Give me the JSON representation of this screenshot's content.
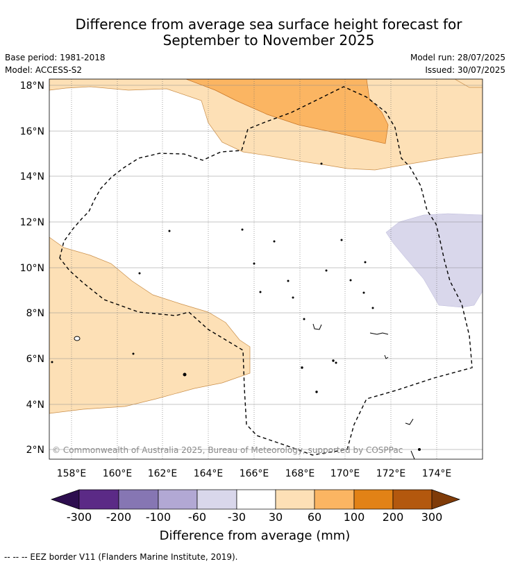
{
  "header": {
    "title_line1": "Difference from average sea surface height forecast for",
    "title_line2": "September to November 2025",
    "base_period": "Base period: 1981-2018",
    "model": "Model: ACCESS-S2",
    "model_run": "Model run: 28/07/2025",
    "issued": "Issued: 30/07/2025"
  },
  "map": {
    "latitude_labels": [
      "18°N",
      "16°N",
      "14°N",
      "12°N",
      "10°N",
      "8°N",
      "6°N",
      "4°N",
      "2°N"
    ],
    "longitude_labels": [
      "158°E",
      "160°E",
      "162°E",
      "164°E",
      "166°E",
      "168°E",
      "170°E",
      "172°E",
      "174°E"
    ],
    "copyright": "© Commonwealth of Australia 2025, Bureau of Meteorology, supported by COSPPac",
    "overlay_border_legend": "-- -- -- EEZ border V11 (Flanders Marine Institute, 2019).",
    "shading_colors": {
      "very_light_orange": "#fde0b6",
      "medium_orange": "#fbb562",
      "light_purple": "#d9d7eb"
    }
  },
  "legend": {
    "title": "Difference from average (mm)",
    "tick_labels": [
      "-300",
      "-200",
      "-100",
      "-60",
      "-30",
      "30",
      "60",
      "100",
      "200",
      "300"
    ],
    "colors": [
      "#2d0e4f",
      "#5b2a86",
      "#8676b3",
      "#b2a8d4",
      "#d9d7eb",
      "#ffffff",
      "#fde0b6",
      "#fbb562",
      "#e28216",
      "#b3580e",
      "#7f3b08"
    ]
  }
}
